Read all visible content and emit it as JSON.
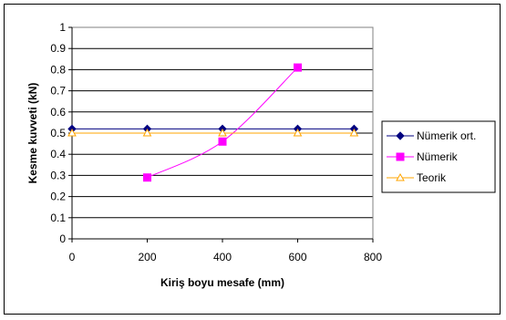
{
  "chart_data": {
    "type": "line",
    "xlabel": "Kiriş boyu mesafe (mm)",
    "ylabel": "Kesme kuvveti (kN)",
    "xlim": [
      0,
      800
    ],
    "ylim": [
      0,
      1
    ],
    "x_ticks": [
      "0",
      "200",
      "400",
      "600",
      "800"
    ],
    "y_ticks": [
      "0",
      "0.1",
      "0.2",
      "0.3",
      "0.4",
      "0.5",
      "0.6",
      "0.7",
      "0.8",
      "0.9",
      "1"
    ],
    "grid": "horizontal",
    "legend_position": "right",
    "series": [
      {
        "name": "Nümerik ort.",
        "color": "#000080",
        "marker": "diamond",
        "smooth": false,
        "points": [
          [
            0,
            0.52
          ],
          [
            200,
            0.52
          ],
          [
            400,
            0.52
          ],
          [
            600,
            0.52
          ],
          [
            750,
            0.52
          ]
        ]
      },
      {
        "name": "Nümerik",
        "color": "#FF00FF",
        "marker": "square",
        "smooth": true,
        "points": [
          [
            200,
            0.29
          ],
          [
            400,
            0.46
          ],
          [
            600,
            0.81
          ]
        ]
      },
      {
        "name": "Teorik",
        "color": "#FFA500",
        "marker": "triangle",
        "smooth": false,
        "points": [
          [
            0,
            0.5
          ],
          [
            200,
            0.5
          ],
          [
            400,
            0.5
          ],
          [
            600,
            0.5
          ],
          [
            750,
            0.5
          ]
        ]
      }
    ]
  }
}
